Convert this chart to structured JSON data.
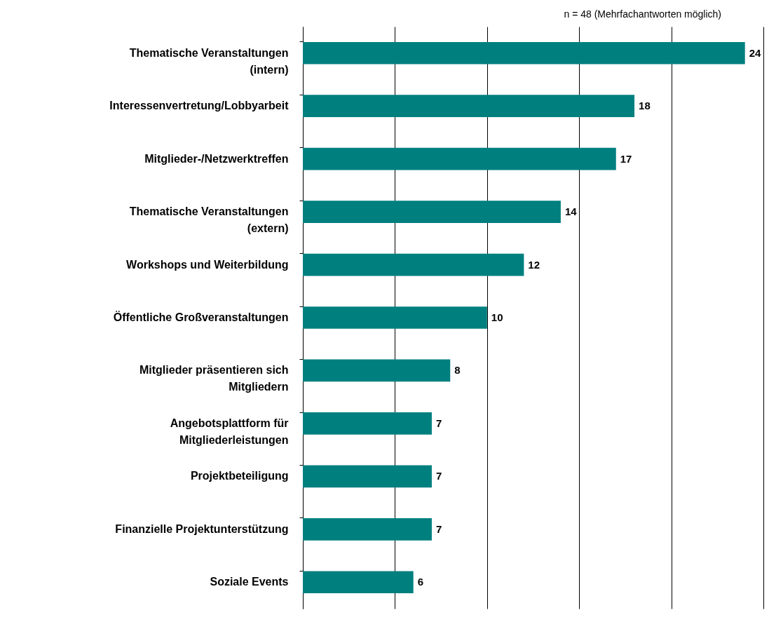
{
  "chart_data": {
    "type": "bar",
    "orientation": "horizontal",
    "title": "n = 48 (Mehrfachantworten möglich)",
    "categories": [
      "Thematische Veranstaltungen\n(intern)",
      "Interessenvertretung/Lobbyarbeit",
      "Mitglieder-/Netzwerktreffen",
      "Thematische Veranstaltungen\n(extern)",
      "Workshops und Weiterbildung",
      "Öffentliche Großveranstaltungen",
      "Mitglieder präsentieren sich\nMitgliedern",
      "Angebotsplattform für\nMitgliederleistungen",
      "Projektbeteiligung",
      "Finanzielle Projektunterstützung",
      "Soziale Events"
    ],
    "values": [
      24,
      18,
      17,
      14,
      12,
      10,
      8,
      7,
      7,
      7,
      6
    ],
    "color": "#007f7f",
    "data_labels": true,
    "grid": "x",
    "tick_labels": "y",
    "xlim": [
      0,
      25
    ],
    "xticks": [
      {
        "value": 0,
        "label": null
      },
      {
        "value": 5,
        "label": null
      },
      {
        "value": 10,
        "label": null
      },
      {
        "value": 15,
        "label": null
      },
      {
        "value": 20,
        "label": null
      },
      {
        "value": 25,
        "label": null
      }
    ]
  }
}
